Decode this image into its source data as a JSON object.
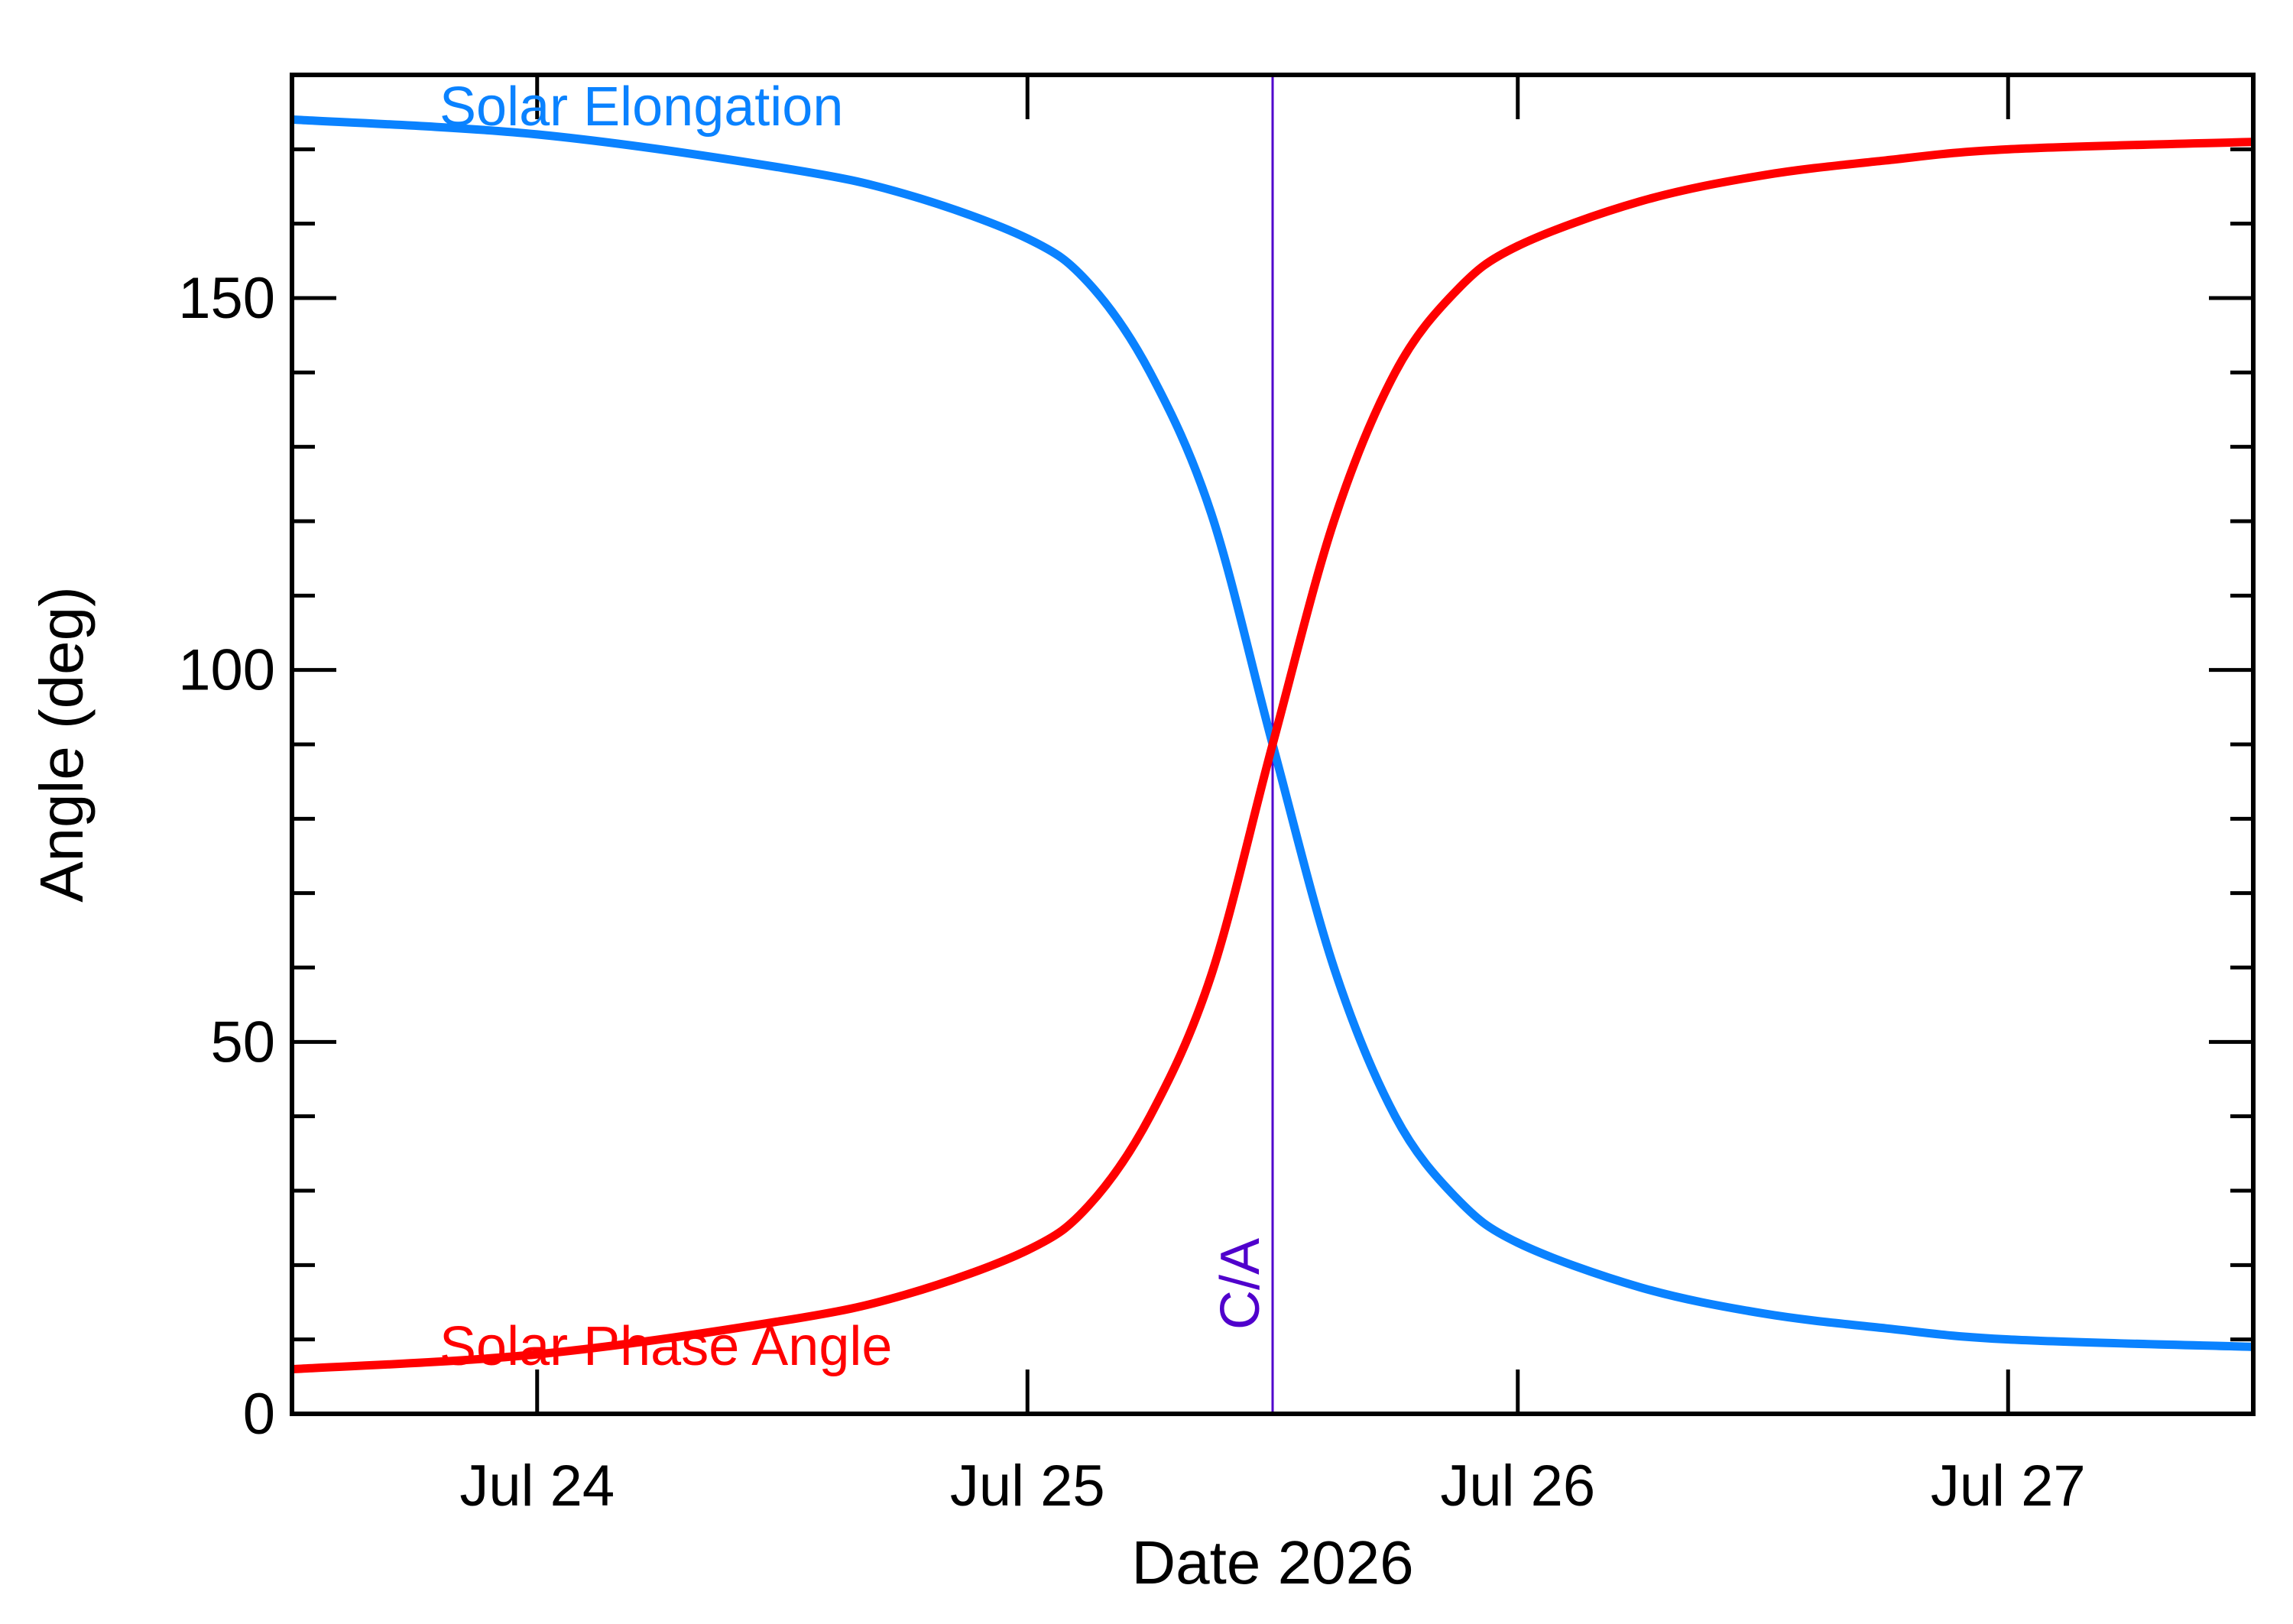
{
  "chart_data": {
    "type": "line",
    "title": "",
    "xlabel": "Date 2026",
    "ylabel": "Angle (deg)",
    "xlim": [
      "2026-07-23T12:00",
      "2026-07-27T12:00"
    ],
    "ylim": [
      0,
      180
    ],
    "x_ticks": [
      {
        "date": "2026-07-24",
        "label": "Jul 24"
      },
      {
        "date": "2026-07-25",
        "label": "Jul 25"
      },
      {
        "date": "2026-07-26",
        "label": "Jul 26"
      },
      {
        "date": "2026-07-27",
        "label": "Jul 27"
      }
    ],
    "y_ticks": [
      0,
      50,
      100,
      150
    ],
    "grid": false,
    "close_approach": {
      "date": "2026-07-25T12:00",
      "label": "C/A",
      "color": "#5000cc"
    },
    "series": [
      {
        "name": "Solar Elongation",
        "color": "#0a82ff",
        "x": [
          "2026-07-23T12:00",
          "2026-07-24T00:00",
          "2026-07-24T12:00",
          "2026-07-24T18:00",
          "2026-07-25T00:00",
          "2026-07-25T03:00",
          "2026-07-25T06:00",
          "2026-07-25T09:00",
          "2026-07-25T12:00",
          "2026-07-25T15:00",
          "2026-07-25T18:00",
          "2026-07-25T21:00",
          "2026-07-26T00:00",
          "2026-07-26T06:00",
          "2026-07-26T12:00",
          "2026-07-26T18:00",
          "2026-07-27T00:00",
          "2026-07-27T12:00"
        ],
        "values": [
          174,
          172,
          167.5,
          164,
          158,
          152,
          140,
          121,
          90,
          60,
          40,
          29,
          23,
          17,
          13.5,
          11.5,
          10,
          9
        ]
      },
      {
        "name": "Solar Phase Angle",
        "color": "#ff0000",
        "x": [
          "2026-07-23T12:00",
          "2026-07-24T00:00",
          "2026-07-24T12:00",
          "2026-07-24T18:00",
          "2026-07-25T00:00",
          "2026-07-25T03:00",
          "2026-07-25T06:00",
          "2026-07-25T09:00",
          "2026-07-25T12:00",
          "2026-07-25T15:00",
          "2026-07-25T18:00",
          "2026-07-25T21:00",
          "2026-07-26T00:00",
          "2026-07-26T06:00",
          "2026-07-26T12:00",
          "2026-07-26T18:00",
          "2026-07-27T00:00",
          "2026-07-27T12:00"
        ],
        "values": [
          6,
          8,
          12.5,
          16,
          22,
          28,
          40,
          59,
          90,
          120,
          140,
          151,
          157,
          163,
          166.5,
          168.5,
          170,
          171
        ]
      }
    ]
  }
}
